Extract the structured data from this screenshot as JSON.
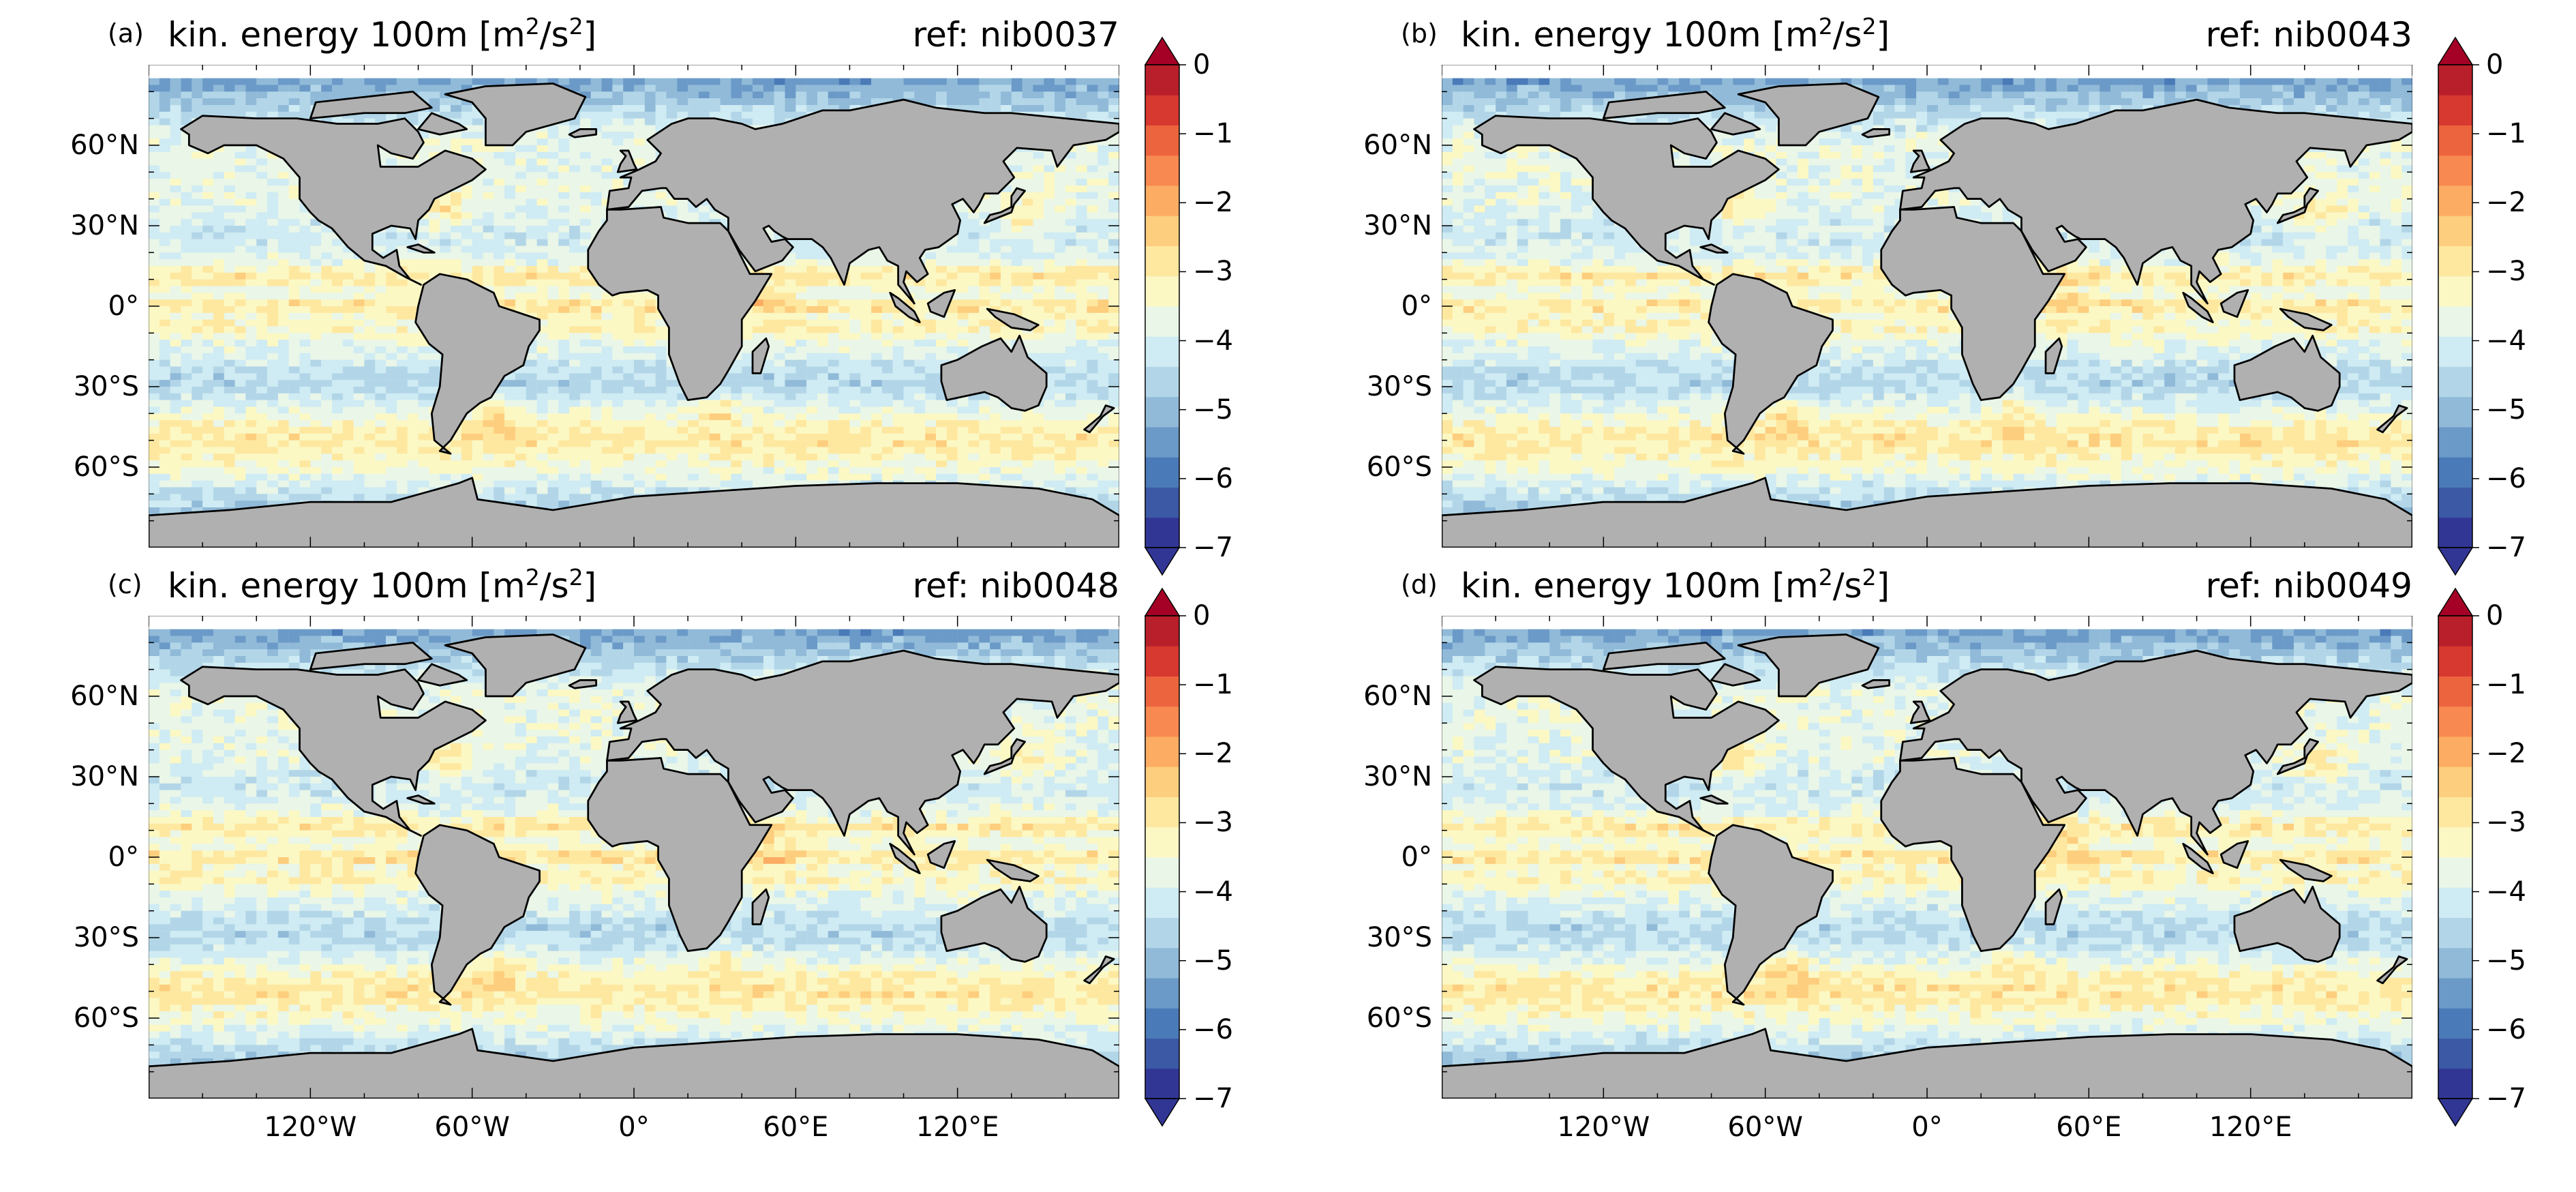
{
  "figure": {
    "variable": "kin. energy 100m",
    "unit_base": "[m",
    "unit_exp1": "2",
    "unit_mid": "/s",
    "unit_exp2": "2",
    "unit_close": "]"
  },
  "panels": [
    {
      "id": "a",
      "letter": "(a)",
      "ref": "ref: nib0037",
      "show_xlabels": false
    },
    {
      "id": "b",
      "letter": "(b)",
      "ref": "ref: nib0043",
      "show_xlabels": false
    },
    {
      "id": "c",
      "letter": "(c)",
      "ref": "ref: nib0048",
      "show_xlabels": true
    },
    {
      "id": "d",
      "letter": "(d)",
      "ref": "ref: nib0049",
      "show_xlabels": true
    }
  ],
  "axes": {
    "lat_ticks": [
      "60°N",
      "30°N",
      "0°",
      "30°S",
      "60°S"
    ],
    "lon_ticks": [
      "120°W",
      "60°W",
      "0°",
      "60°E",
      "120°E"
    ]
  },
  "colorbar": {
    "ticks": [
      "0",
      "−1",
      "−2",
      "−3",
      "−4",
      "−5",
      "−6",
      "−7"
    ],
    "min": -7,
    "max": 0,
    "step": 0.5,
    "colors": [
      "#313695",
      "#3c59a6",
      "#4a7ab7",
      "#6b9ac8",
      "#90bad8",
      "#b2d6e8",
      "#cfebf3",
      "#e9f6e8",
      "#fbf8c4",
      "#fee8a0",
      "#fdce7e",
      "#fcad63",
      "#f88950",
      "#ec643e",
      "#d7382f",
      "#b81f2a"
    ],
    "over_color": "#a50026",
    "under_color": "#313695",
    "land_color": "#b0b0b0"
  },
  "chart_data": {
    "type": "heatmap",
    "title": "kin. energy 100m [m2/s2]",
    "colorbar_range": [
      -7,
      0
    ],
    "lat_range": [
      -90,
      90
    ],
    "lon_range": [
      -180,
      180
    ],
    "panels": [
      "ref: nib0037",
      "ref: nib0043",
      "ref: nib0048",
      "ref: nib0049"
    ]
  }
}
